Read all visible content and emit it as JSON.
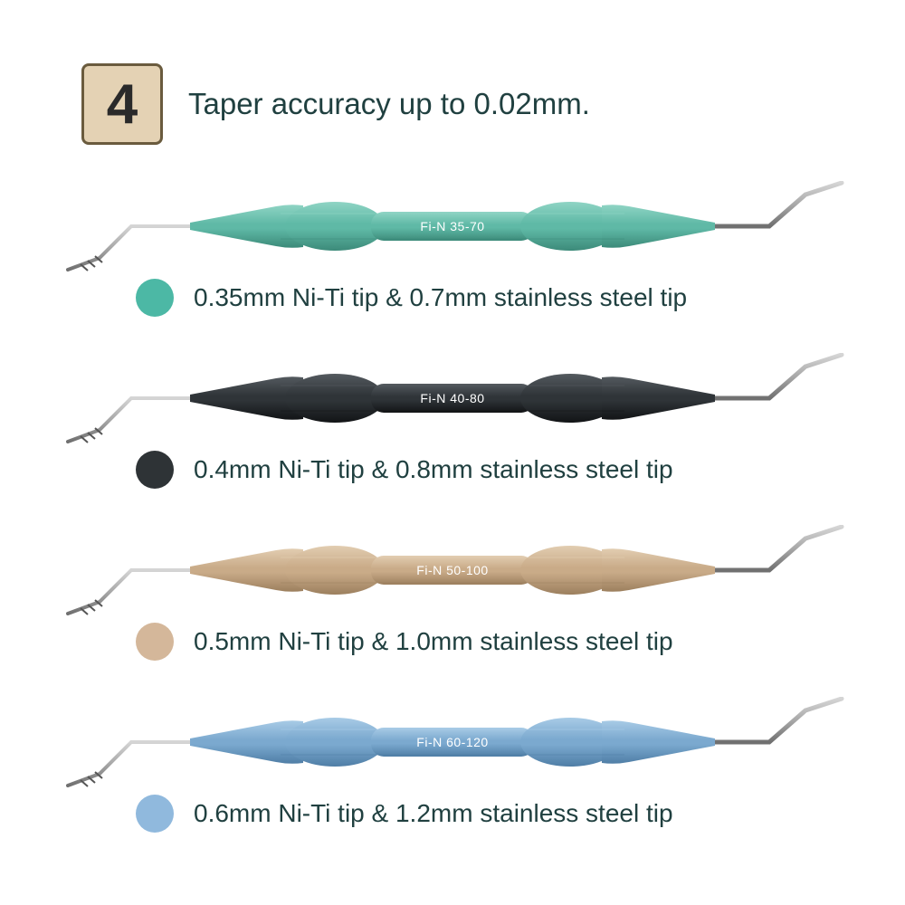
{
  "header": {
    "badge_number": "4",
    "badge_bg": "#e4d2b4",
    "badge_border": "#6a5b3e",
    "headline": "Taper accuracy up to 0.02mm."
  },
  "text_color": "#204040",
  "tip_color": "#a8a8a8",
  "tools": [
    {
      "handle_label": "Fi-N  35-70",
      "handle_color": "#5fb9a6",
      "handle_highlight": "#8fd4c4",
      "handle_shadow": "#3c8a79",
      "swatch_color": "#4cb8a5",
      "description": "0.35mm Ni-Ti tip & 0.7mm stainless steel tip"
    },
    {
      "handle_label": "Fi-N  40-80",
      "handle_color": "#2f3438",
      "handle_highlight": "#545a5f",
      "handle_shadow": "#121416",
      "swatch_color": "#2e3336",
      "description": "0.4mm Ni-Ti tip & 0.8mm stainless steel tip"
    },
    {
      "handle_label": "Fi-N  50-100",
      "handle_color": "#c9ab88",
      "handle_highlight": "#e2cdb1",
      "handle_shadow": "#9c7f5e",
      "swatch_color": "#d4b79a",
      "description": "0.5mm Ni-Ti tip & 1.0mm stainless steel tip"
    },
    {
      "handle_label": "Fi-N  60-120",
      "handle_color": "#7ba9cf",
      "handle_highlight": "#a8cbe6",
      "handle_shadow": "#4f7ea6",
      "swatch_color": "#90b9dd",
      "description": "0.6mm Ni-Ti tip & 1.2mm stainless steel tip"
    }
  ]
}
